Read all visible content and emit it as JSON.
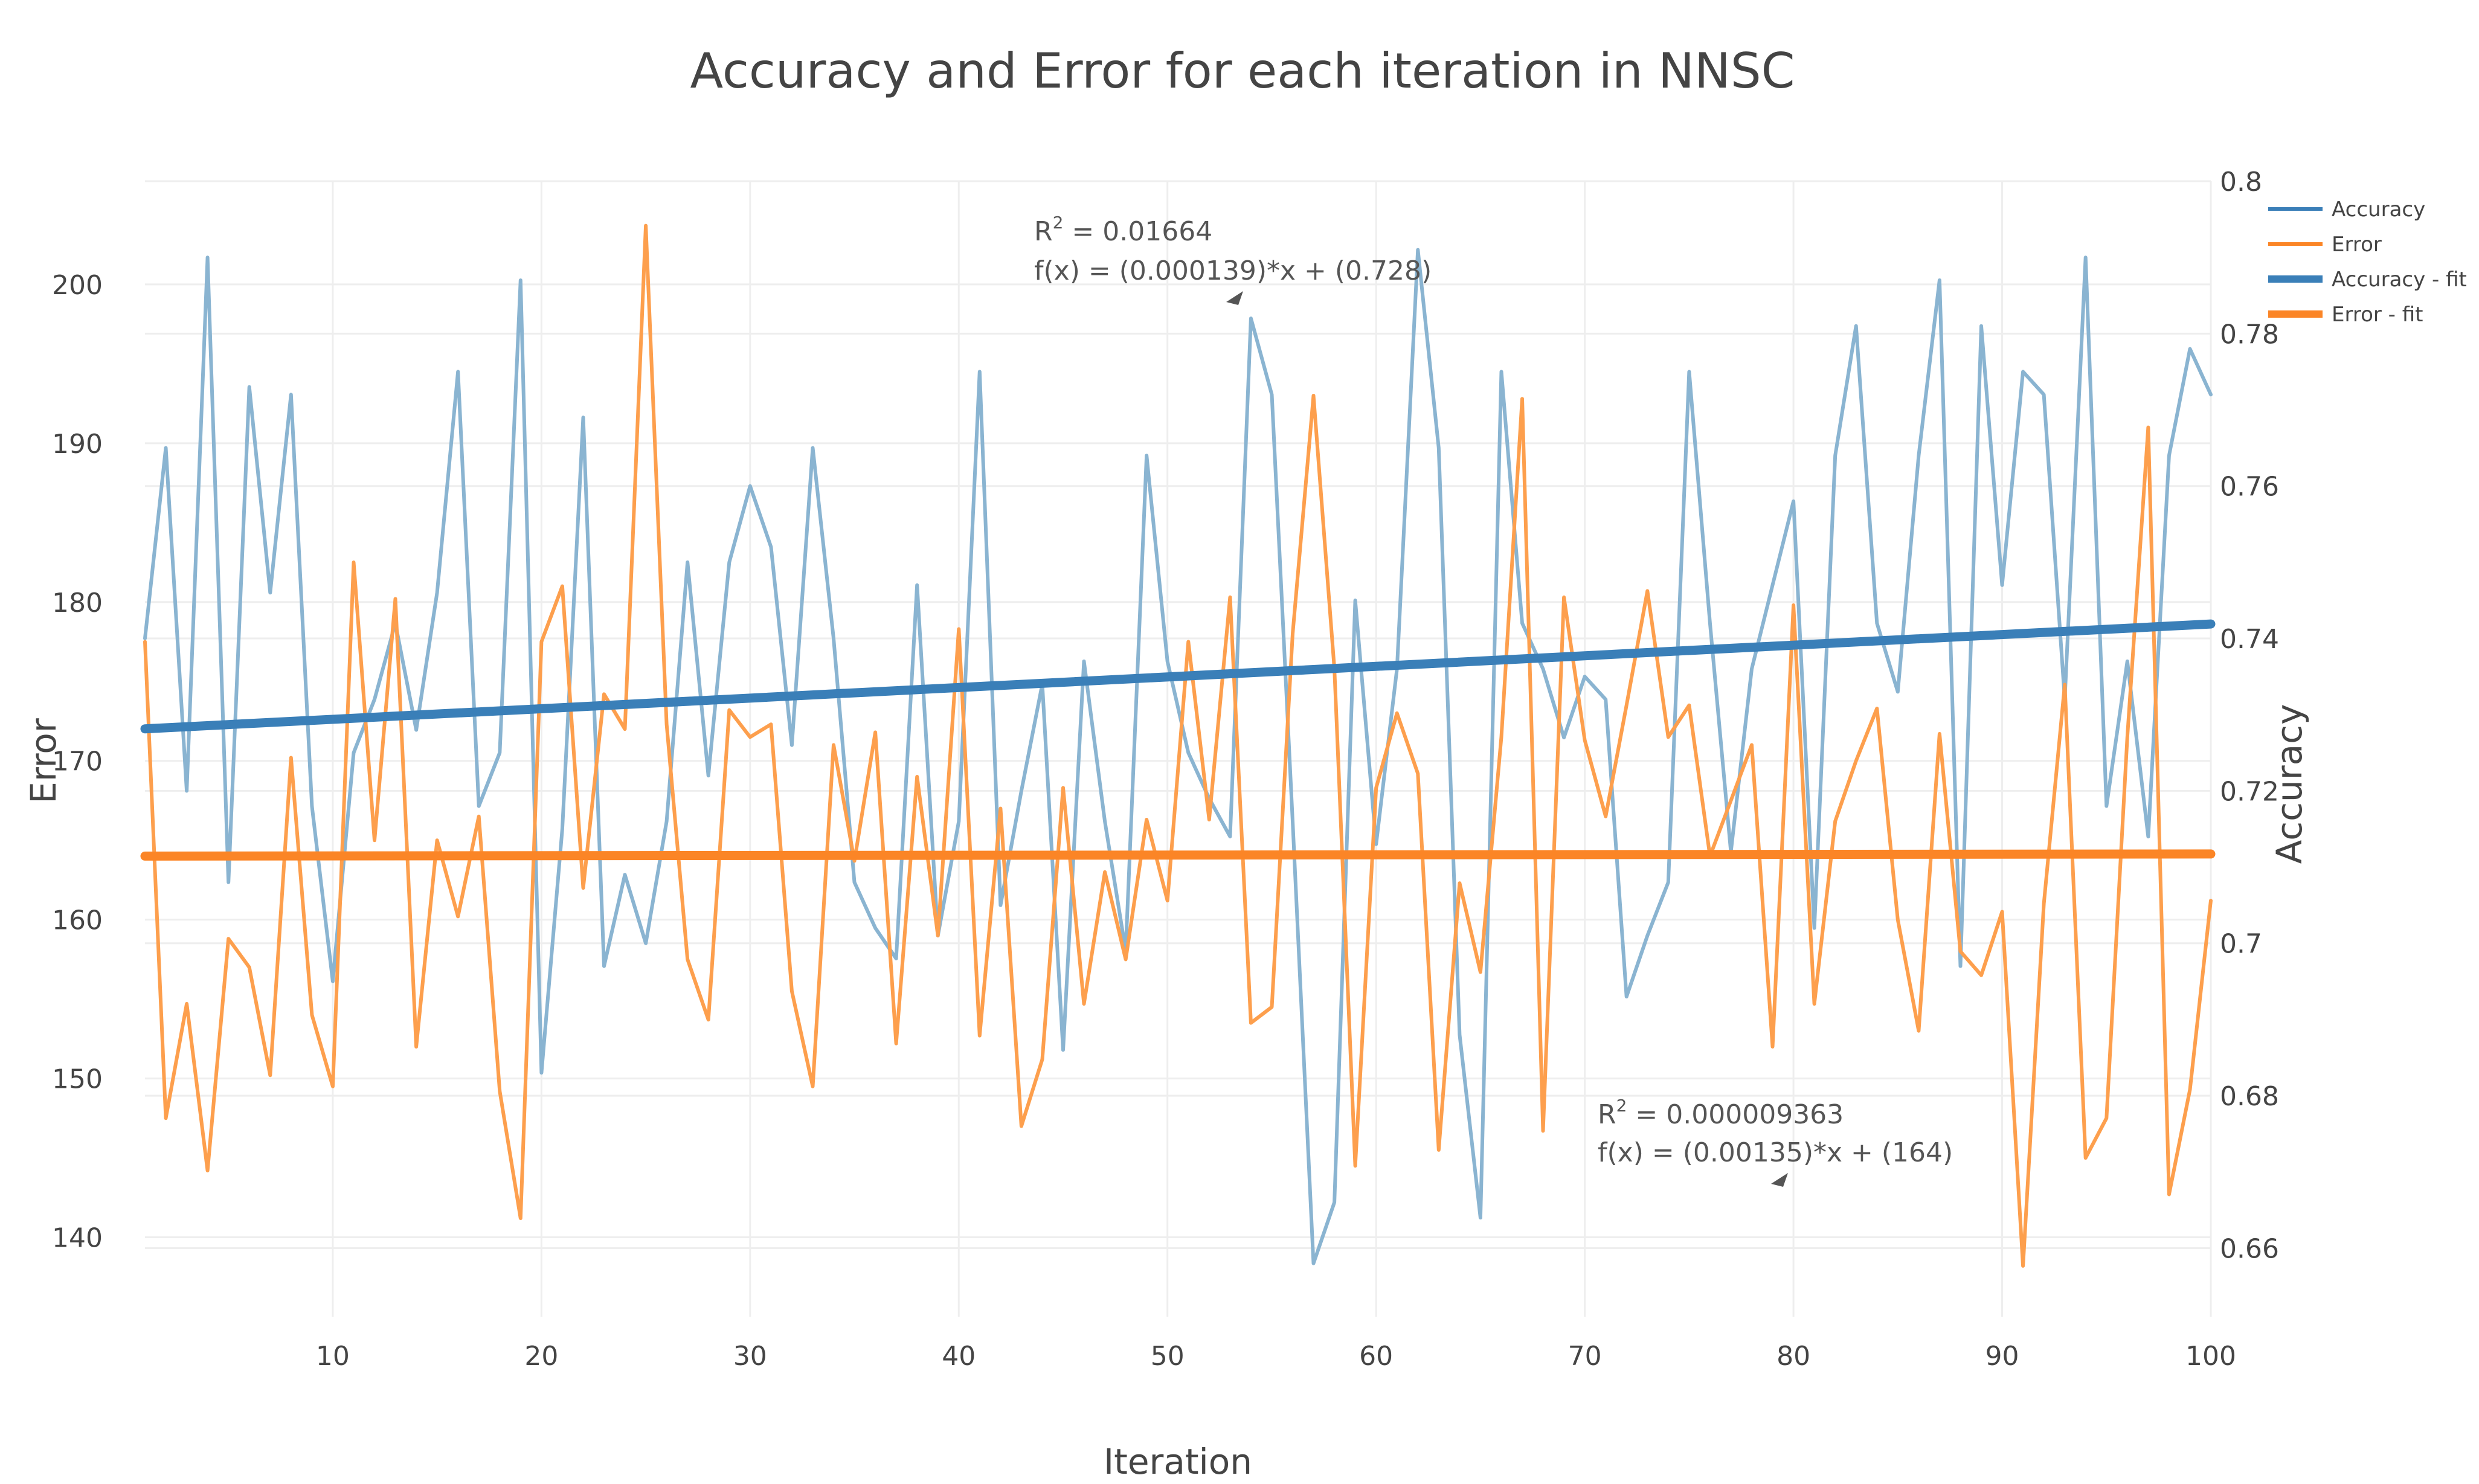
{
  "chart_data": {
    "type": "line",
    "title": "Accuracy and Error for each iteration in NNSC",
    "xlabel": "Iteration",
    "ylabel_left": "Error",
    "ylabel_right": "Accuracy",
    "xlim": [
      1,
      100
    ],
    "ylim_left": [
      135,
      206.5
    ],
    "ylim_right": [
      0.651,
      0.8
    ],
    "x_ticks": [
      10,
      20,
      30,
      40,
      50,
      60,
      70,
      80,
      90,
      100
    ],
    "y_left_ticks": [
      140,
      150,
      160,
      170,
      180,
      190,
      200
    ],
    "y_right_ticks": [
      "0.66",
      "0.68",
      "0.7",
      "0.72",
      "0.74",
      "0.76",
      "0.78",
      "0.8"
    ],
    "grid": true,
    "legend_position": "top-right",
    "colors": {
      "accuracy": "#8ab4d1",
      "error": "#fd9f4d",
      "accuracy_fit": "#3a7fb8",
      "error_fit": "#fb8526"
    },
    "legend": [
      {
        "label": "Accuracy",
        "color": "#3a7fb8",
        "thick": false
      },
      {
        "label": "Error",
        "color": "#fb8526",
        "thick": false
      },
      {
        "label": "Accuracy - fit",
        "color": "#3a7fb8",
        "thick": true
      },
      {
        "label": "Error - fit",
        "color": "#fb8526",
        "thick": true
      }
    ],
    "series": [
      {
        "name": "Accuracy",
        "axis": "right",
        "x": [
          1,
          2,
          3,
          4,
          5,
          6,
          7,
          8,
          9,
          10,
          11,
          12,
          13,
          14,
          15,
          16,
          17,
          18,
          19,
          20,
          21,
          22,
          23,
          24,
          25,
          26,
          27,
          28,
          29,
          30,
          31,
          32,
          33,
          34,
          35,
          36,
          37,
          38,
          39,
          40,
          41,
          42,
          43,
          44,
          45,
          46,
          47,
          48,
          49,
          50,
          51,
          52,
          53,
          54,
          55,
          56,
          57,
          58,
          59,
          60,
          61,
          62,
          63,
          64,
          65,
          66,
          67,
          68,
          69,
          70,
          71,
          72,
          73,
          74,
          75,
          76,
          77,
          78,
          79,
          80,
          81,
          82,
          83,
          84,
          85,
          86,
          87,
          88,
          89,
          90,
          91,
          92,
          93,
          94,
          95,
          96,
          97,
          98,
          99,
          100
        ],
        "values": [
          0.74,
          0.765,
          0.72,
          0.79,
          0.708,
          0.773,
          0.746,
          0.772,
          0.718,
          0.695,
          0.725,
          0.732,
          0.742,
          0.728,
          0.746,
          0.775,
          0.718,
          0.725,
          0.787,
          0.683,
          0.715,
          0.769,
          0.697,
          0.709,
          0.7,
          0.716,
          0.75,
          0.722,
          0.75,
          0.76,
          0.752,
          0.726,
          0.765,
          0.74,
          0.708,
          0.702,
          0.698,
          0.747,
          0.701,
          0.716,
          0.775,
          0.705,
          0.72,
          0.734,
          0.686,
          0.737,
          0.716,
          0.699,
          0.764,
          0.737,
          0.725,
          0.719,
          0.714,
          0.782,
          0.772,
          0.716,
          0.658,
          0.666,
          0.745,
          0.713,
          0.736,
          0.791,
          0.765,
          0.688,
          0.664,
          0.775,
          0.742,
          0.736,
          0.727,
          0.735,
          0.732,
          0.693,
          0.701,
          0.708,
          0.775,
          0.742,
          0.712,
          0.736,
          0.747,
          0.758,
          0.702,
          0.764,
          0.781,
          0.742,
          0.733,
          0.764,
          0.787,
          0.697,
          0.781,
          0.747,
          0.775,
          0.772,
          0.732,
          0.79,
          0.718,
          0.737,
          0.714,
          0.764,
          0.778,
          0.772
        ]
      },
      {
        "name": "Error",
        "axis": "left",
        "x": [
          1,
          2,
          3,
          4,
          5,
          6,
          7,
          8,
          9,
          10,
          11,
          12,
          13,
          14,
          15,
          16,
          17,
          18,
          19,
          20,
          21,
          22,
          23,
          24,
          25,
          26,
          27,
          28,
          29,
          30,
          31,
          32,
          33,
          34,
          35,
          36,
          37,
          38,
          39,
          40,
          41,
          42,
          43,
          44,
          45,
          46,
          47,
          48,
          49,
          50,
          51,
          52,
          53,
          54,
          55,
          56,
          57,
          58,
          59,
          60,
          61,
          62,
          63,
          64,
          65,
          66,
          67,
          68,
          69,
          70,
          71,
          72,
          73,
          74,
          75,
          76,
          77,
          78,
          79,
          80,
          81,
          82,
          83,
          84,
          85,
          86,
          87,
          88,
          89,
          90,
          91,
          92,
          93,
          94,
          95,
          96,
          97,
          98,
          99,
          100
        ],
        "values": [
          177.5,
          147.5,
          154.7,
          144.2,
          158.8,
          157.0,
          150.2,
          170.2,
          154.0,
          149.5,
          182.5,
          165.0,
          180.2,
          152.0,
          165.0,
          160.2,
          166.5,
          149.2,
          141.2,
          177.5,
          181.0,
          162.0,
          174.2,
          172.0,
          203.7,
          172.3,
          157.5,
          153.7,
          173.2,
          171.5,
          172.3,
          155.5,
          149.5,
          171.0,
          163.7,
          171.8,
          152.2,
          169.0,
          159.0,
          178.3,
          152.7,
          167.0,
          147.0,
          151.2,
          168.3,
          154.7,
          163.0,
          157.5,
          166.3,
          161.2,
          177.5,
          166.3,
          180.3,
          153.5,
          154.5,
          178.0,
          193.0,
          175.8,
          144.5,
          168.3,
          173.0,
          169.2,
          145.5,
          162.3,
          156.7,
          171.5,
          192.8,
          146.7,
          180.3,
          171.3,
          166.5,
          173.5,
          180.7,
          171.5,
          173.5,
          164.0,
          167.5,
          171.0,
          152.0,
          179.8,
          154.7,
          166.2,
          170.0,
          173.3,
          160.0,
          153.0,
          171.7,
          158.0,
          156.5,
          160.5,
          138.2,
          161.0,
          174.8,
          145.0,
          147.5,
          171.5,
          191.0,
          142.7,
          149.3,
          161.2
        ]
      },
      {
        "name": "Accuracy - fit",
        "axis": "right",
        "x": [
          1,
          100
        ],
        "values": [
          0.728139,
          0.7419
        ]
      },
      {
        "name": "Error - fit",
        "axis": "left",
        "x": [
          1,
          100
        ],
        "values": [
          164.00135,
          164.135
        ]
      }
    ],
    "annotations": [
      {
        "id": "accuracy-fit",
        "r2_value": " = 0.01664",
        "equation": "f(x) = (0.000139)*x + (0.728)"
      },
      {
        "id": "error-fit",
        "r2_value": " = 0.000009363",
        "equation": "f(x) = (0.00135)*x + (164)"
      }
    ]
  }
}
